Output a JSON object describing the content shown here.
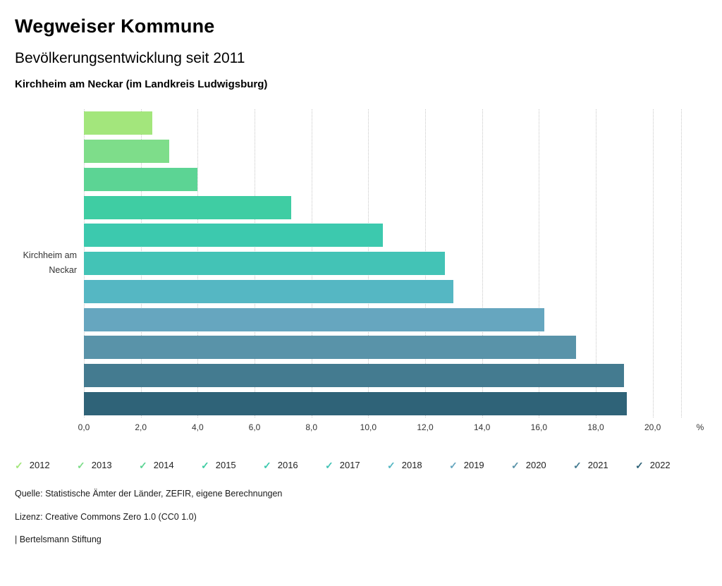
{
  "header": {
    "title": "Wegweiser Kommune",
    "subtitle": "Bevölkerungsentwicklung seit 2011",
    "location": "Kirchheim am Neckar (im Landkreis Ludwigsburg)"
  },
  "chart_data": {
    "type": "bar",
    "orientation": "horizontal",
    "title": "Bevölkerungsentwicklung seit 2011",
    "category_label": "Kirchheim am Neckar",
    "unit": "%",
    "xlim": [
      0,
      21
    ],
    "grid": true,
    "legend_position": "bottom",
    "series": [
      {
        "name": "2012",
        "value": 2.4,
        "color": "#a3e67c"
      },
      {
        "name": "2013",
        "value": 3.0,
        "color": "#7edd8a"
      },
      {
        "name": "2014",
        "value": 4.0,
        "color": "#5cd494"
      },
      {
        "name": "2015",
        "value": 7.3,
        "color": "#3fcda3"
      },
      {
        "name": "2016",
        "value": 10.5,
        "color": "#3cc9ae"
      },
      {
        "name": "2017",
        "value": 12.7,
        "color": "#43c3b6"
      },
      {
        "name": "2018",
        "value": 13.0,
        "color": "#55b7c3"
      },
      {
        "name": "2019",
        "value": 16.2,
        "color": "#66a6bf"
      },
      {
        "name": "2020",
        "value": 17.3,
        "color": "#5993a9"
      },
      {
        "name": "2021",
        "value": 19.0,
        "color": "#447b90"
      },
      {
        "name": "2022",
        "value": 19.1,
        "color": "#2f6378"
      }
    ],
    "ticks": [
      {
        "label": "0,0",
        "value": 0
      },
      {
        "label": "2,0",
        "value": 2
      },
      {
        "label": "4,0",
        "value": 4
      },
      {
        "label": "6,0",
        "value": 6
      },
      {
        "label": "8,0",
        "value": 8
      },
      {
        "label": "10,0",
        "value": 10
      },
      {
        "label": "12,0",
        "value": 12
      },
      {
        "label": "14,0",
        "value": 14
      },
      {
        "label": "16,0",
        "value": 16
      },
      {
        "label": "18,0",
        "value": 18
      },
      {
        "label": "20,0",
        "value": 20
      },
      {
        "label": "",
        "value": 21
      }
    ]
  },
  "legend": {
    "check_glyph": "✓"
  },
  "footer": {
    "source": "Quelle: Statistische Ämter der Länder, ZEFIR, eigene Berechnungen",
    "license": "Lizenz: Creative Commons Zero 1.0 (CC0 1.0)",
    "attribution": "| Bertelsmann Stiftung"
  }
}
